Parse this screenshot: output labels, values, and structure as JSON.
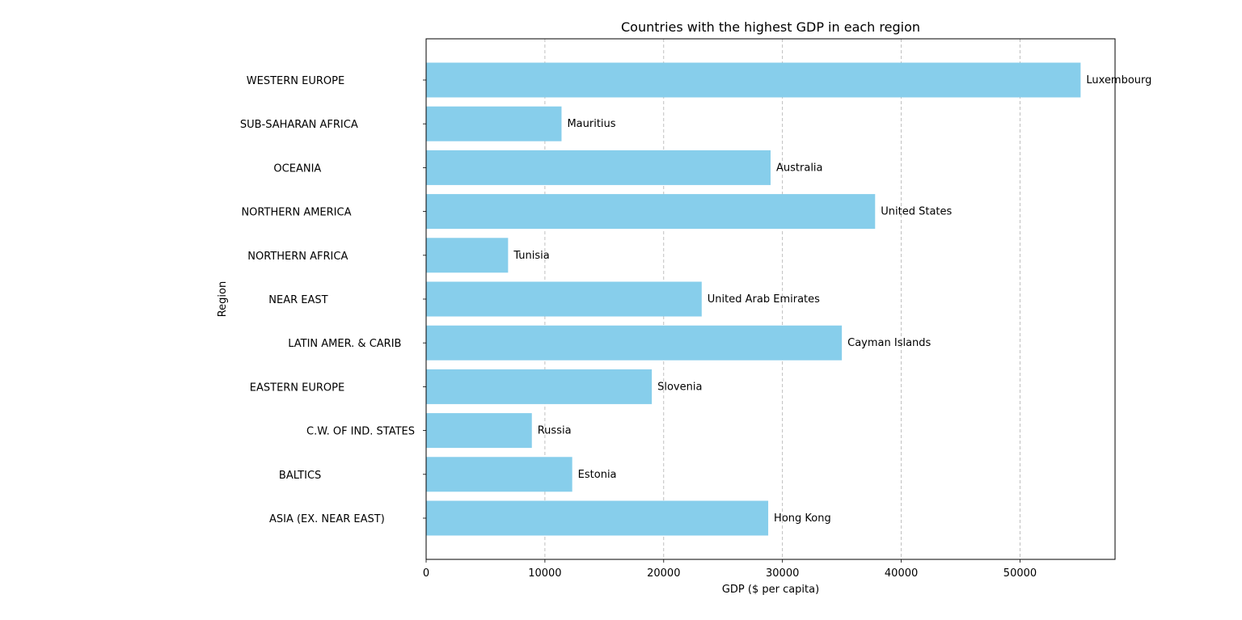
{
  "chart_data": {
    "type": "bar",
    "orientation": "horizontal",
    "title": "Countries with the highest GDP in each region",
    "xlabel": "GDP ($ per capita)",
    "ylabel": "Region",
    "xlim": [
      0,
      58000
    ],
    "xticks": [
      0,
      10000,
      20000,
      30000,
      40000,
      50000
    ],
    "grid": "x-dashed",
    "bar_color": "#87ceeb",
    "categories": [
      "ASIA (EX. NEAR EAST)         ",
      "BALTICS                            ",
      "C.W. OF IND. STATES",
      "EASTERN EUROPE                     ",
      "LATIN AMER. & CARIB    ",
      "NEAR EAST                          ",
      "NORTHERN AFRICA                    ",
      "NORTHERN AMERICA                   ",
      "OCEANIA                            ",
      "SUB-SAHARAN AFRICA                 ",
      "WESTERN EUROPE                     "
    ],
    "category_labels": [
      "ASIA (EX. NEAR EAST)",
      "BALTICS",
      "C.W. OF IND. STATES",
      "EASTERN EUROPE",
      "LATIN AMER. & CARIB",
      "NEAR EAST",
      "NORTHERN AFRICA",
      "NORTHERN AMERICA",
      "OCEANIA",
      "SUB-SAHARAN AFRICA",
      "WESTERN EUROPE"
    ],
    "values": [
      28800,
      12300,
      8900,
      19000,
      35000,
      23200,
      6900,
      37800,
      29000,
      11400,
      55100
    ],
    "bar_labels": [
      "Hong Kong",
      "Estonia",
      "Russia",
      "Slovenia",
      "Cayman Islands",
      "United Arab Emirates",
      "Tunisia",
      "United States",
      "Australia",
      "Mauritius",
      "Luxembourg"
    ]
  }
}
